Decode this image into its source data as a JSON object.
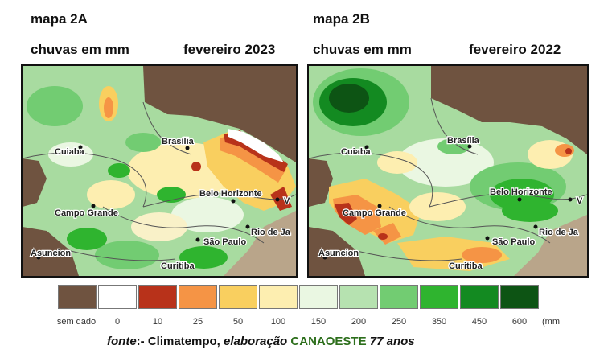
{
  "map_a": {
    "title": "mapa 2A",
    "subtitle": "chuvas em mm",
    "date": "fevereiro 2023",
    "cities": [
      "Cuiaba",
      "Brasília",
      "Belo Horizonte",
      "Campo Grande",
      "São Paulo",
      "Rio de Ja",
      "V",
      "Asuncion",
      "Curitiba"
    ]
  },
  "map_b": {
    "title": "mapa 2B",
    "subtitle": "chuvas em mm",
    "date": "fevereiro 2022",
    "cities": [
      "Cuiaba",
      "Brasília",
      "Belo Horizonte",
      "Campo Grande",
      "São Paulo",
      "Rio de Ja",
      "V",
      "Asuncion",
      "Curitiba"
    ]
  },
  "legend": {
    "items": [
      {
        "label": "sem dado",
        "color": "#6f5340"
      },
      {
        "label": "0",
        "color": "#ffffff"
      },
      {
        "label": "10",
        "color": "#b8321a"
      },
      {
        "label": "25",
        "color": "#f59445"
      },
      {
        "label": "50",
        "color": "#f9cf5f"
      },
      {
        "label": "100",
        "color": "#fdeeb0"
      },
      {
        "label": "150",
        "color": "#eaf7e2"
      },
      {
        "label": "200",
        "color": "#b6e2b0"
      },
      {
        "label": "250",
        "color": "#72cc72"
      },
      {
        "label": "350",
        "color": "#2fb42f"
      },
      {
        "label": "450",
        "color": "#138a21"
      },
      {
        "label": "600",
        "color": "#0d5414"
      }
    ],
    "unit": "(mm"
  },
  "source": {
    "prefix": "fonte",
    "rest": ":- Climatempo, ",
    "elab": "elaboração",
    "brand": "CANAOESTE",
    "suffix": "77 anos"
  }
}
